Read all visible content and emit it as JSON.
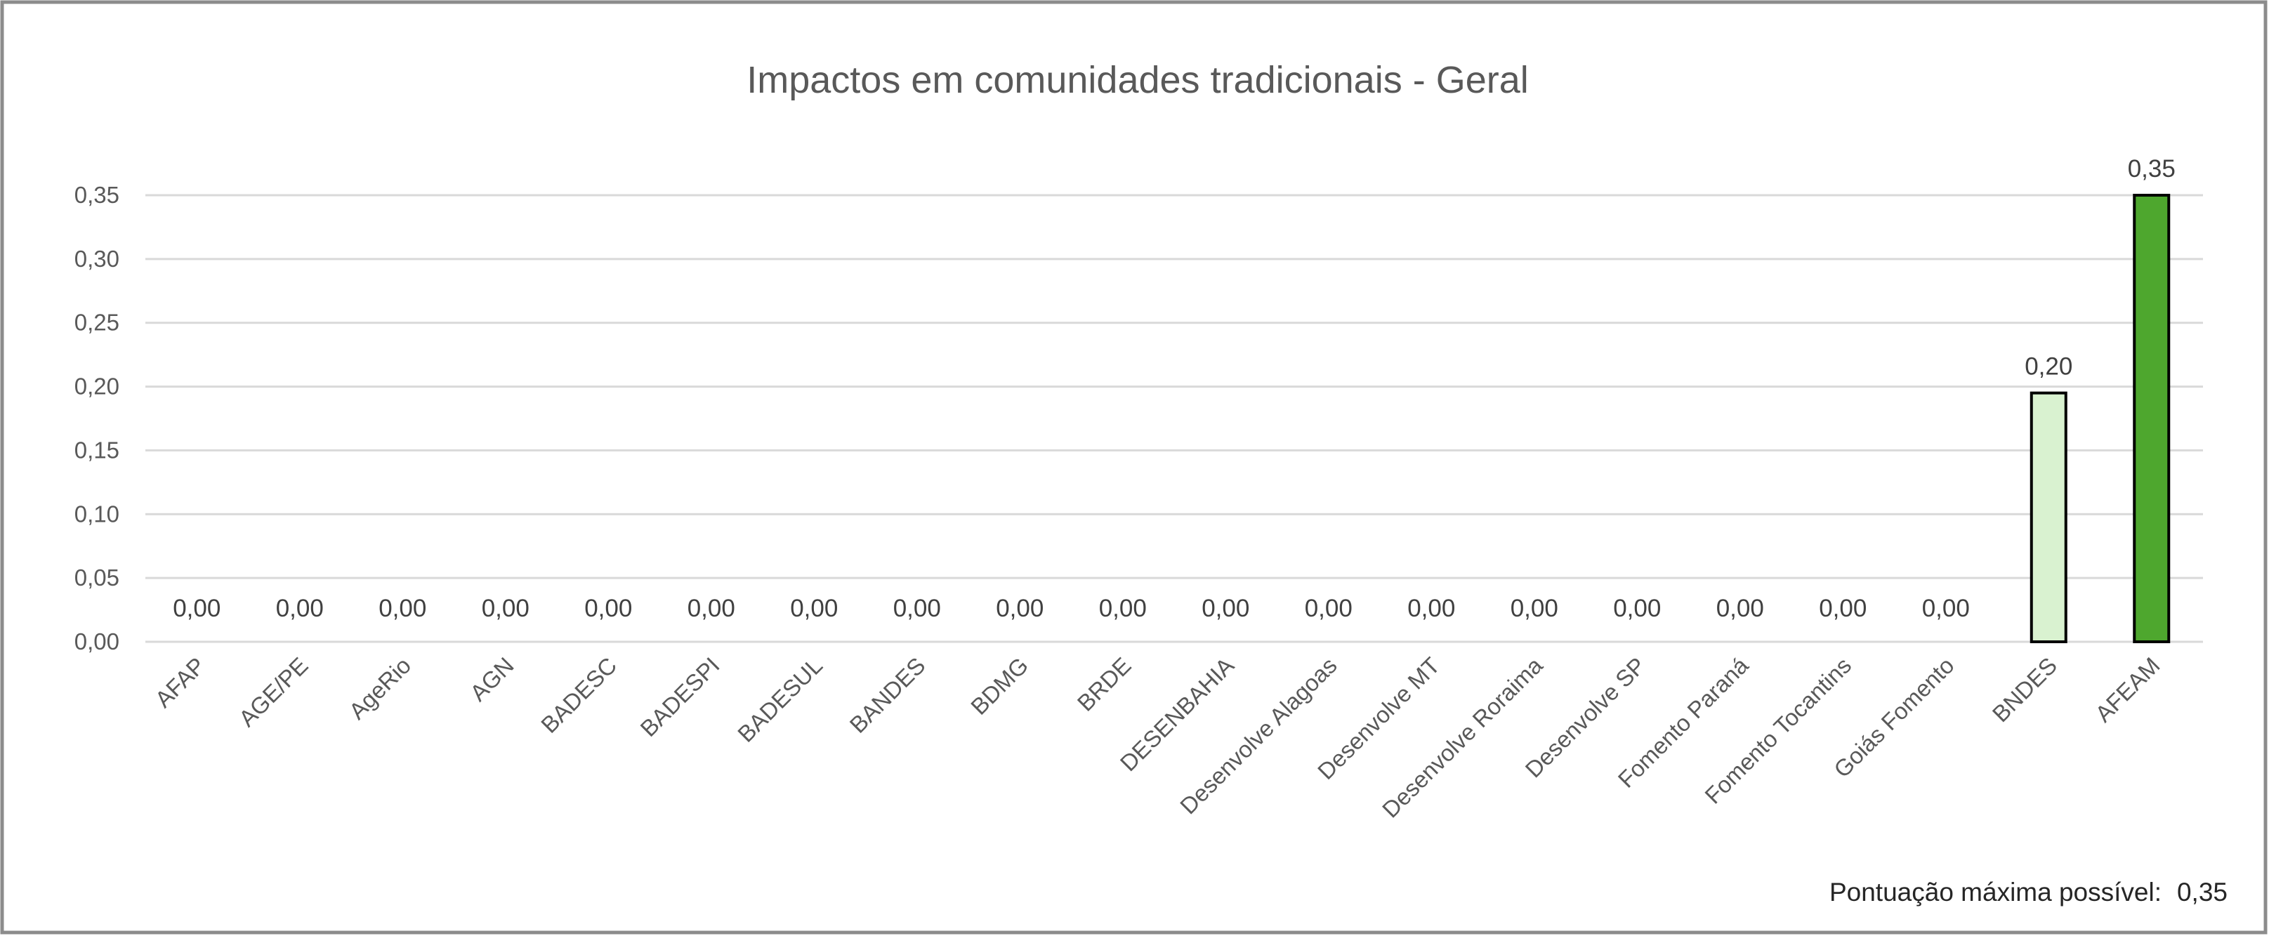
{
  "chart_data": {
    "type": "bar",
    "title": "Impactos em comunidades tradicionais - Geral",
    "xlabel": "",
    "ylabel": "",
    "ylim": [
      0,
      0.35
    ],
    "yticks": [
      "0,00",
      "0,05",
      "0,10",
      "0,15",
      "0,20",
      "0,25",
      "0,30",
      "0,35"
    ],
    "ytick_values": [
      0,
      0.05,
      0.1,
      0.15,
      0.2,
      0.25,
      0.3,
      0.35
    ],
    "grid": true,
    "categories": [
      "AFAP",
      "AGE/PE",
      "AgeRio",
      "AGN",
      "BADESC",
      "BADESPI",
      "BADESUL",
      "BANDES",
      "BDMG",
      "BRDE",
      "DESENBAHIA",
      "Desenvolve Alagoas",
      "Desenvolve MT",
      "Desenvolve Roraima",
      "Desenvolve SP",
      "Fomento Paraná",
      "Fomento Tocantins",
      "Goiás Fomento",
      "BNDES",
      "AFEAM"
    ],
    "values": [
      0,
      0,
      0,
      0,
      0,
      0,
      0,
      0,
      0,
      0,
      0,
      0,
      0,
      0,
      0,
      0,
      0,
      0,
      0.195,
      0.35
    ],
    "data_labels": [
      "0,00",
      "0,00",
      "0,00",
      "0,00",
      "0,00",
      "0,00",
      "0,00",
      "0,00",
      "0,00",
      "0,00",
      "0,00",
      "0,00",
      "0,00",
      "0,00",
      "0,00",
      "0,00",
      "0,00",
      "0,00",
      "0,20",
      "0,35"
    ],
    "colors": {
      "BNDES": "#d9f2d0",
      "AFEAM": "#4ea72e",
      "default": "#4ea72e",
      "bar_outline": "#000000"
    },
    "annotation": {
      "label": "Pontuação máxima possível:",
      "value": "0,35"
    }
  }
}
